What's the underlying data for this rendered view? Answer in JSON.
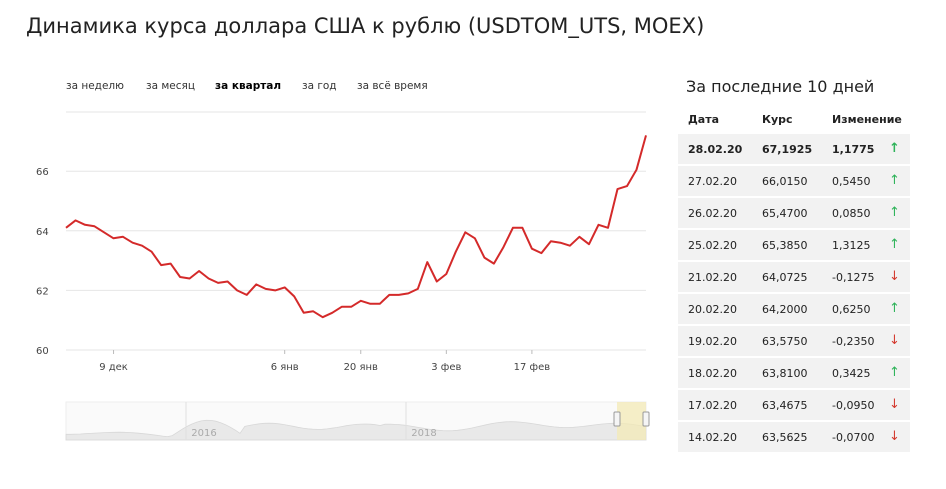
{
  "title": "Динамика курса доллара США к рублю (USDTOM_UTS, MOEX)",
  "tabs": [
    "за неделю",
    "за месяц",
    "за квартал",
    "за год",
    "за всё время"
  ],
  "active_tab": "за квартал",
  "side_title": "За последние 10 дней",
  "table": {
    "headers": [
      "Дата",
      "Курс",
      "Изменение"
    ],
    "rows": [
      {
        "date": "28.02.20",
        "rate": "67,1925",
        "change": "1,1775",
        "dir": "up"
      },
      {
        "date": "27.02.20",
        "rate": "66,0150",
        "change": "0,5450",
        "dir": "up"
      },
      {
        "date": "26.02.20",
        "rate": "65,4700",
        "change": "0,0850",
        "dir": "up"
      },
      {
        "date": "25.02.20",
        "rate": "65,3850",
        "change": "1,3125",
        "dir": "up"
      },
      {
        "date": "21.02.20",
        "rate": "64,0725",
        "change": "-0,1275",
        "dir": "down"
      },
      {
        "date": "20.02.20",
        "rate": "64,2000",
        "change": "0,6250",
        "dir": "up"
      },
      {
        "date": "19.02.20",
        "rate": "63,5750",
        "change": "-0,2350",
        "dir": "down"
      },
      {
        "date": "18.02.20",
        "rate": "63,8100",
        "change": "0,3425",
        "dir": "up"
      },
      {
        "date": "17.02.20",
        "rate": "63,4675",
        "change": "-0,0950",
        "dir": "down"
      },
      {
        "date": "14.02.20",
        "rate": "63,5625",
        "change": "-0,0700",
        "dir": "down"
      }
    ]
  },
  "arrows": {
    "up": "↑",
    "down": "↓"
  },
  "colors": {
    "line": "#d42a2a",
    "up": "#2fb35a",
    "down": "#d43a2f",
    "grid": "#e6e6e6",
    "navigator": "#e9e9e9"
  },
  "chart_data": {
    "type": "line",
    "series": [
      {
        "values": [
          64.1,
          64.35,
          64.2,
          64.15,
          63.95,
          63.75,
          63.8,
          63.6,
          63.5,
          63.3,
          62.85,
          62.9,
          62.45,
          62.4,
          62.65,
          62.4,
          62.25,
          62.3,
          62.0,
          61.85,
          62.2,
          62.05,
          62.0,
          62.1,
          61.8,
          61.25,
          61.3,
          61.1,
          61.25,
          61.45,
          61.45,
          61.65,
          61.55,
          61.55,
          61.85,
          61.85,
          61.9,
          62.05,
          62.95,
          62.3,
          62.55,
          63.3,
          63.95,
          63.75,
          63.1,
          62.9,
          63.45,
          64.1,
          64.1,
          63.4,
          63.25,
          63.65,
          63.6,
          63.5,
          63.8,
          63.55,
          64.2,
          64.1,
          65.4,
          65.5,
          66.05,
          67.2
        ]
      }
    ],
    "y_ticks": [
      60,
      62,
      64,
      66
    ],
    "ylim": [
      60,
      68
    ],
    "x_ticks": [
      "9 дек",
      "6 янв",
      "20 янв",
      "3 фев",
      "17 фев"
    ],
    "x_tick_index": [
      5,
      23,
      31,
      40,
      49
    ],
    "navigator_labels": [
      "2016",
      "2018"
    ],
    "grid": true
  }
}
